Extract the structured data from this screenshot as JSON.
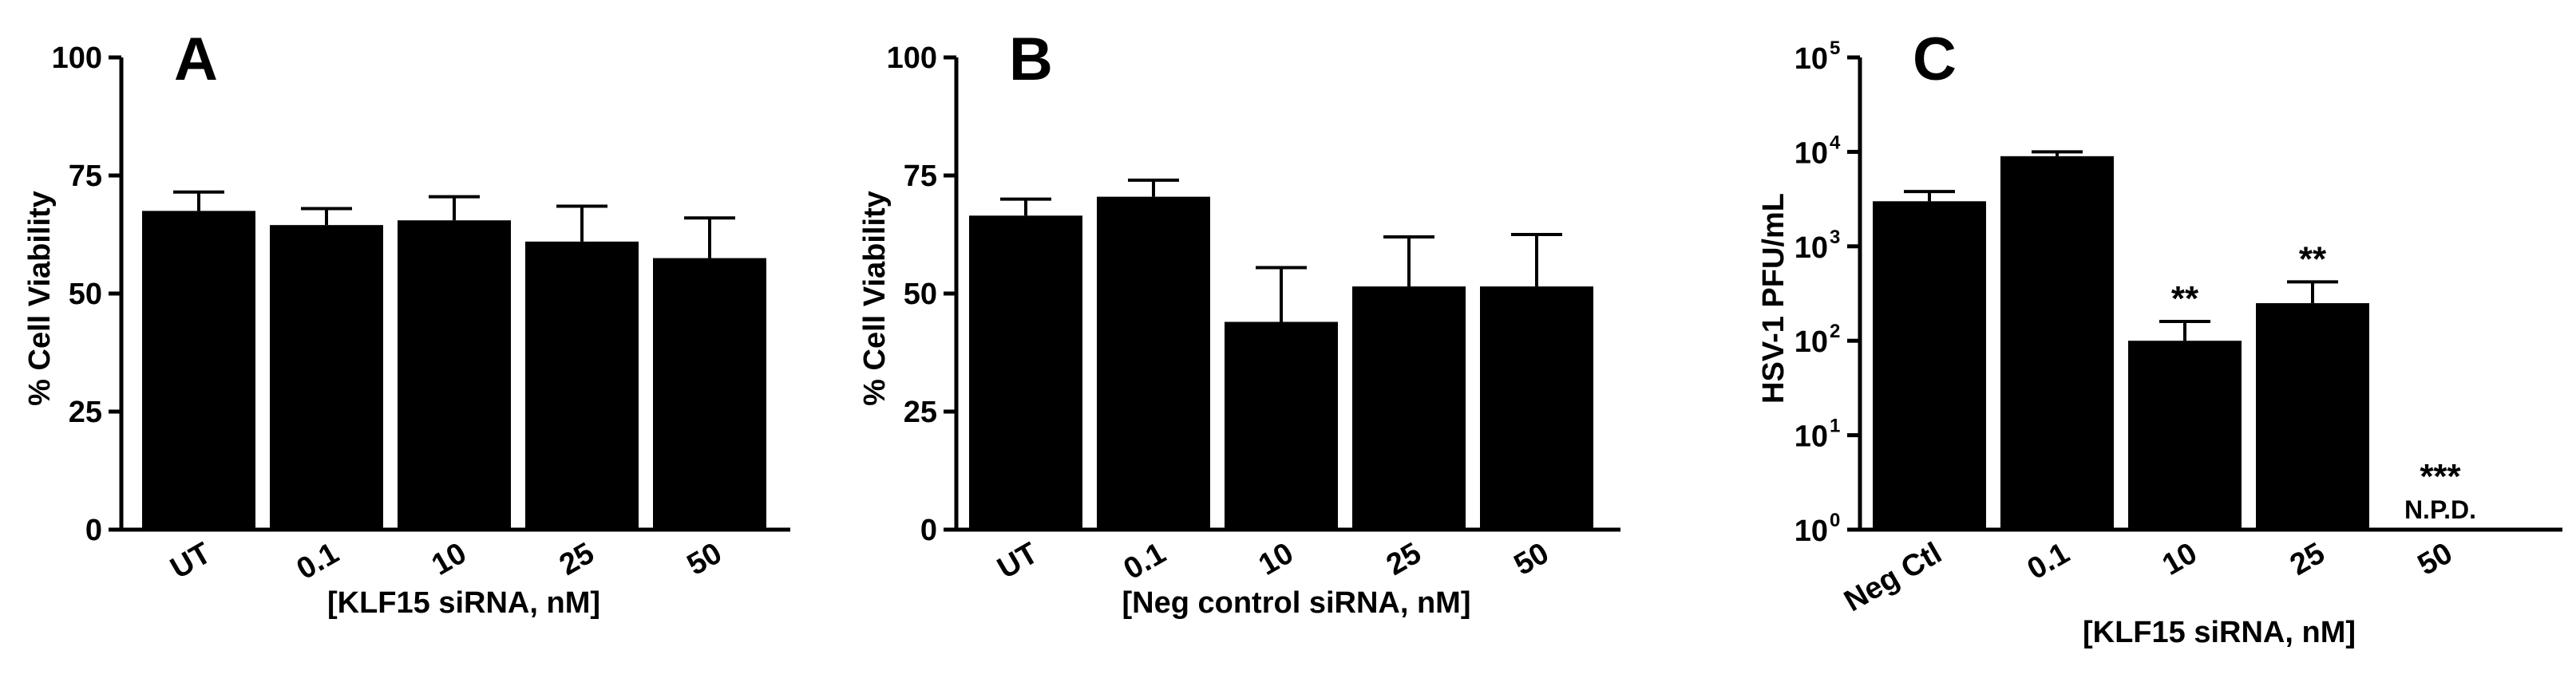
{
  "colors": {
    "bar": "#000000",
    "axis": "#000000",
    "background": "#ffffff"
  },
  "chart_data": [
    {
      "panel": "A",
      "type": "bar",
      "ylabel": "% Cell Viability",
      "xlabel": "[KLF15 siRNA, nM]",
      "categories": [
        "UT",
        "0.1",
        "10",
        "25",
        "50"
      ],
      "values": [
        67.5,
        64.5,
        65.5,
        61,
        57.5
      ],
      "errors": [
        4,
        3.5,
        5,
        7.5,
        8.5
      ],
      "ylim": [
        0,
        100
      ],
      "yticks": [
        "0",
        "25",
        "50",
        "75",
        "100"
      ],
      "yscale": "linear",
      "annotations": []
    },
    {
      "panel": "B",
      "type": "bar",
      "ylabel": "% Cell Viability",
      "xlabel": "[Neg control siRNA, nM]",
      "categories": [
        "UT",
        "0.1",
        "10",
        "25",
        "50"
      ],
      "values": [
        66.5,
        70.5,
        44,
        51.5,
        51.5
      ],
      "errors": [
        3.5,
        3.5,
        11.5,
        10.5,
        11
      ],
      "ylim": [
        0,
        100
      ],
      "yticks": [
        "0",
        "25",
        "50",
        "75",
        "100"
      ],
      "yscale": "linear",
      "annotations": []
    },
    {
      "panel": "C",
      "type": "bar",
      "ylabel": "HSV-1 PFU/mL",
      "xlabel": "[KLF15 siRNA, nM]",
      "categories": [
        "Neg Ctl",
        "0.1",
        "10",
        "25",
        "50"
      ],
      "values": [
        3000,
        9000,
        100,
        250,
        null
      ],
      "errors": [
        800,
        1000,
        60,
        170,
        null
      ],
      "ylim": [
        1,
        100000
      ],
      "yscale": "log",
      "ytick_base": "10",
      "ytick_exponents": [
        "0",
        "1",
        "2",
        "3",
        "4",
        "5"
      ],
      "annotations": [
        {
          "category": "10",
          "text": "**"
        },
        {
          "category": "25",
          "text": "**"
        },
        {
          "category": "50",
          "text": "***",
          "subtext": "N.P.D."
        }
      ]
    }
  ]
}
